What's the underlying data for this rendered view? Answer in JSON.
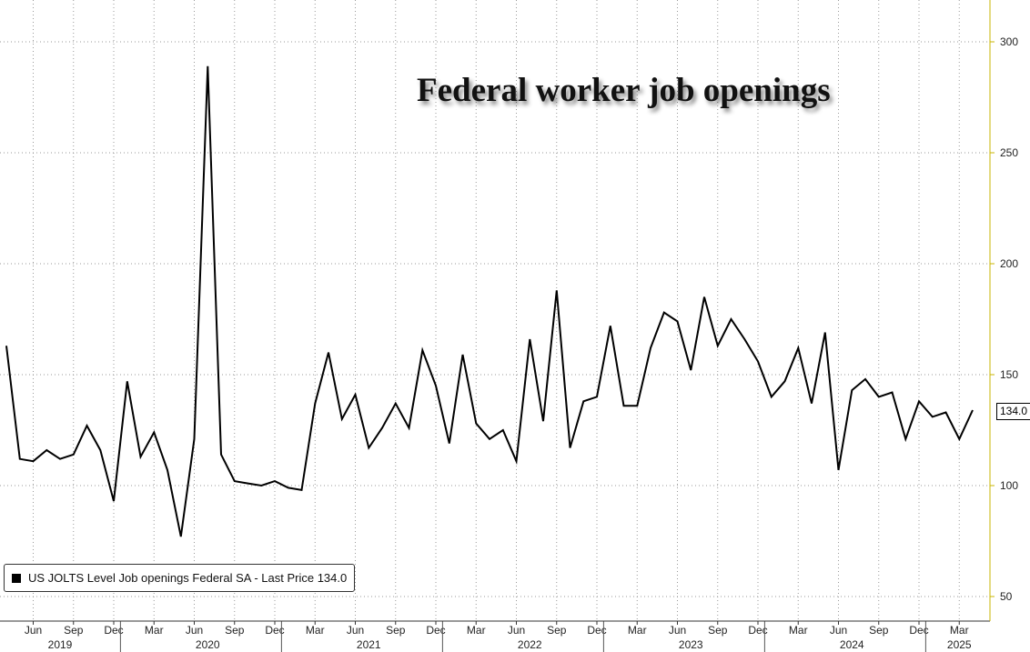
{
  "chart_data": {
    "type": "line",
    "title": "Federal worker job openings",
    "legend": "US JOLTS Level Job openings Federal SA - Last Price 134.0",
    "last_price_label": "134.0",
    "line_color": "#000000",
    "axis_color": "#c8b400",
    "y_axis_position": "right",
    "ylim": [
      30,
      320
    ],
    "yticks": [
      50,
      100,
      150,
      200,
      250,
      300
    ],
    "grid": "dotted",
    "x_start": "2019-04",
    "series": [
      {
        "values": [
          163,
          112,
          111,
          116,
          112,
          114,
          127,
          116,
          93,
          147,
          113,
          124,
          107,
          77,
          121,
          289,
          114,
          102,
          101,
          100,
          102,
          99,
          98,
          137,
          160,
          130,
          141,
          117,
          126,
          137,
          126,
          161,
          145,
          119,
          159,
          128,
          121,
          125,
          111,
          166,
          129,
          188,
          117,
          138,
          140,
          172,
          136,
          136,
          162,
          178,
          174,
          152,
          185,
          163,
          175,
          166,
          156,
          140,
          147,
          162,
          137,
          169,
          107,
          143,
          148,
          140,
          142,
          121,
          138,
          131,
          133,
          121,
          134
        ]
      }
    ],
    "month_ticks": [
      {
        "label": "Jun",
        "month": "2019-06"
      },
      {
        "label": "Sep",
        "month": "2019-09"
      },
      {
        "label": "Dec",
        "month": "2019-12"
      },
      {
        "label": "Mar",
        "month": "2020-03"
      },
      {
        "label": "Jun",
        "month": "2020-06"
      },
      {
        "label": "Sep",
        "month": "2020-09"
      },
      {
        "label": "Dec",
        "month": "2020-12"
      },
      {
        "label": "Mar",
        "month": "2021-03"
      },
      {
        "label": "Jun",
        "month": "2021-06"
      },
      {
        "label": "Sep",
        "month": "2021-09"
      },
      {
        "label": "Dec",
        "month": "2021-12"
      },
      {
        "label": "Mar",
        "month": "2022-03"
      },
      {
        "label": "Jun",
        "month": "2022-06"
      },
      {
        "label": "Sep",
        "month": "2022-09"
      },
      {
        "label": "Dec",
        "month": "2022-12"
      },
      {
        "label": "Mar",
        "month": "2023-03"
      },
      {
        "label": "Jun",
        "month": "2023-06"
      },
      {
        "label": "Sep",
        "month": "2023-09"
      },
      {
        "label": "Dec",
        "month": "2023-12"
      },
      {
        "label": "Mar",
        "month": "2024-03"
      },
      {
        "label": "Jun",
        "month": "2024-06"
      },
      {
        "label": "Sep",
        "month": "2024-09"
      },
      {
        "label": "Dec",
        "month": "2024-12"
      },
      {
        "label": "Mar",
        "month": "2025-03"
      }
    ],
    "year_labels": [
      {
        "label": "2019",
        "month": "2019-08"
      },
      {
        "label": "2020",
        "month": "2020-07"
      },
      {
        "label": "2021",
        "month": "2021-07"
      },
      {
        "label": "2022",
        "month": "2022-07"
      },
      {
        "label": "2023",
        "month": "2023-07"
      },
      {
        "label": "2024",
        "month": "2024-07"
      },
      {
        "label": "2025",
        "month": "2025-03"
      }
    ]
  }
}
